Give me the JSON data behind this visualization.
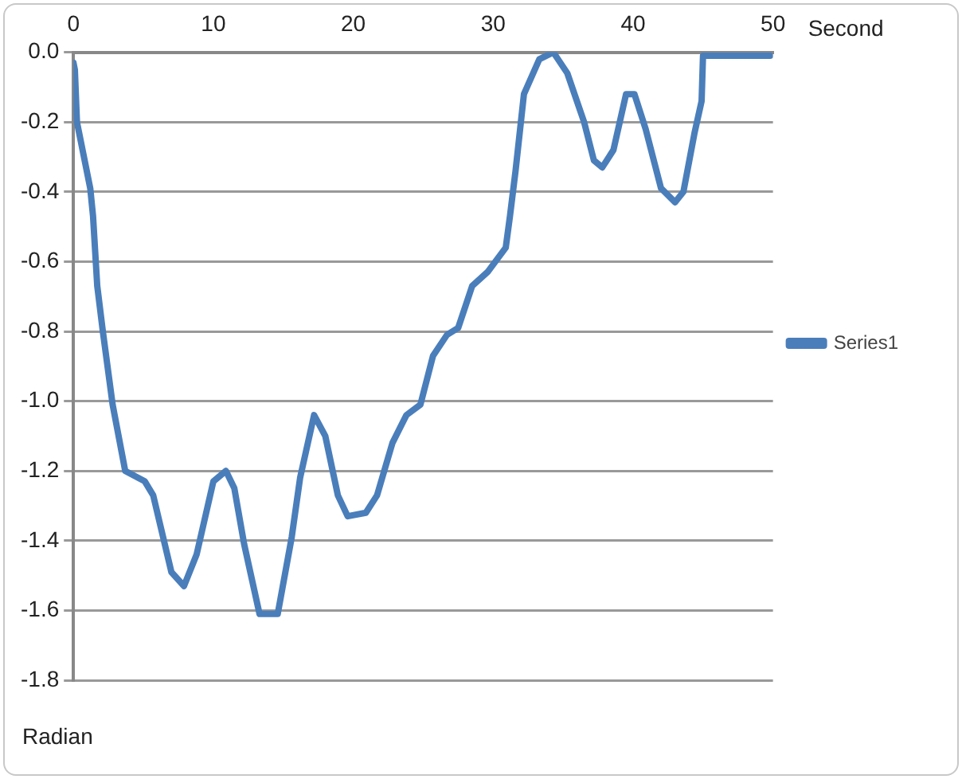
{
  "chart_data": {
    "type": "line",
    "xlabel": "Second",
    "ylabel": "Radian",
    "x": [
      0,
      0.1,
      0.25,
      1.2,
      1.4,
      1.7,
      2.1,
      2.8,
      3.7,
      5.1,
      5.7,
      7.0,
      7.9,
      8.8,
      10,
      10.9,
      11.5,
      12.2,
      13.3,
      14.6,
      15.6,
      16.2,
      17.2,
      18,
      18.9,
      19.6,
      20.9,
      21.7,
      22.8,
      23.8,
      24.8,
      25.7,
      26.7,
      27.5,
      28.5,
      29.6,
      30.9,
      31.2,
      31.6,
      32.2,
      33.3,
      34.3,
      35.3,
      36.5,
      37.2,
      37.8,
      38.6,
      39.5,
      40.1,
      40.9,
      42,
      43,
      43.6,
      44.4,
      44.9,
      45.0,
      49.8
    ],
    "series": [
      {
        "name": "Series1",
        "color": "#4a7ebb",
        "values": [
          -0.03,
          -0.05,
          -0.2,
          -0.39,
          -0.47,
          -0.67,
          -0.8,
          -1.01,
          -1.2,
          -1.23,
          -1.27,
          -1.49,
          -1.53,
          -1.44,
          -1.23,
          -1.2,
          -1.25,
          -1.41,
          -1.61,
          -1.61,
          -1.39,
          -1.22,
          -1.04,
          -1.1,
          -1.27,
          -1.33,
          -1.32,
          -1.27,
          -1.12,
          -1.04,
          -1.01,
          -0.87,
          -0.81,
          -0.79,
          -0.67,
          -0.63,
          -0.56,
          -0.47,
          -0.34,
          -0.12,
          -0.02,
          0,
          -0.06,
          -0.2,
          -0.31,
          -0.33,
          -0.28,
          -0.12,
          -0.12,
          -0.22,
          -0.39,
          -0.43,
          -0.4,
          -0.23,
          -0.14,
          -0.01,
          -0.01
        ]
      }
    ],
    "xlim": [
      0,
      50
    ],
    "xticks": [
      0,
      10,
      20,
      30,
      40,
      50
    ],
    "ylim": [
      -1.8,
      0
    ],
    "yticks": [
      -1.8,
      -1.6,
      -1.4,
      -1.2,
      {
        "value": -1,
        "label": "-1.0"
      },
      -0.8,
      -0.6,
      -0.4,
      -0.2,
      {
        "value": 0,
        "label": "0.0"
      }
    ],
    "grid": "y",
    "legend": "right",
    "marker": "none",
    "line_style": "solid"
  }
}
